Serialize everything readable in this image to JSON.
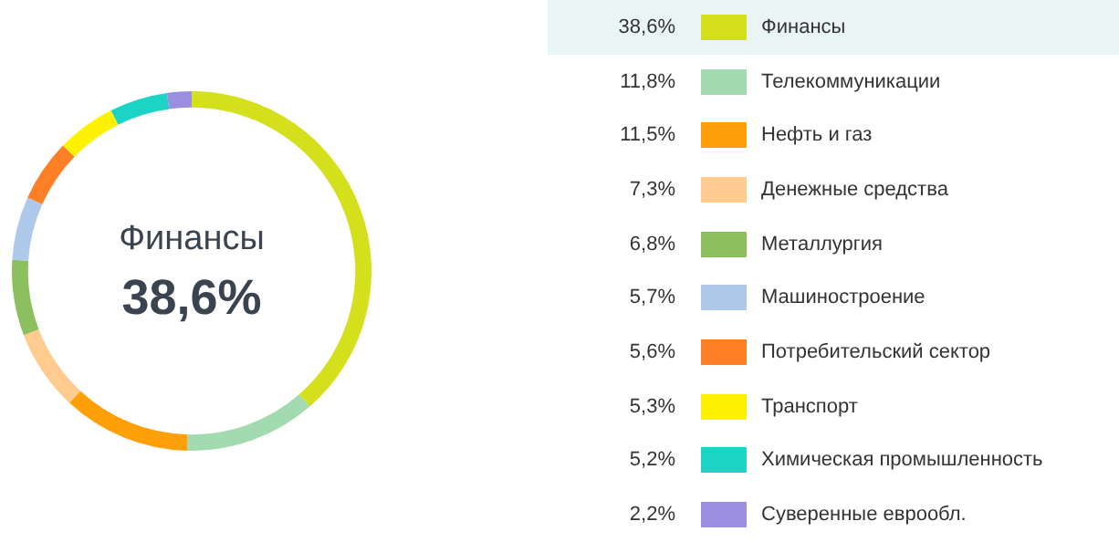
{
  "chart_data": {
    "type": "donut",
    "categories": [
      "Финансы",
      "Телекоммуникации",
      "Нефть и газ",
      "Денежные средства",
      "Металлургия",
      "Машиностроение",
      "Потребительский сектор",
      "Транспорт",
      "Химическая промышленность",
      "Суверенные еврообл."
    ],
    "values": [
      38.6,
      11.8,
      11.5,
      7.3,
      6.8,
      5.7,
      5.6,
      5.3,
      5.2,
      2.2
    ],
    "value_labels": [
      "38,6%",
      "11,8%",
      "11,5%",
      "7,3%",
      "6,8%",
      "5,7%",
      "5,6%",
      "5,3%",
      "5,2%",
      "2,2%"
    ],
    "colors": [
      "#d4e01c",
      "#a3dbb0",
      "#ff9f0a",
      "#ffcb8e",
      "#8cbf5e",
      "#afc9ea",
      "#ff7f27",
      "#fff200",
      "#1dd3c4",
      "#9b8ee0"
    ],
    "legend": "right"
  }
}
